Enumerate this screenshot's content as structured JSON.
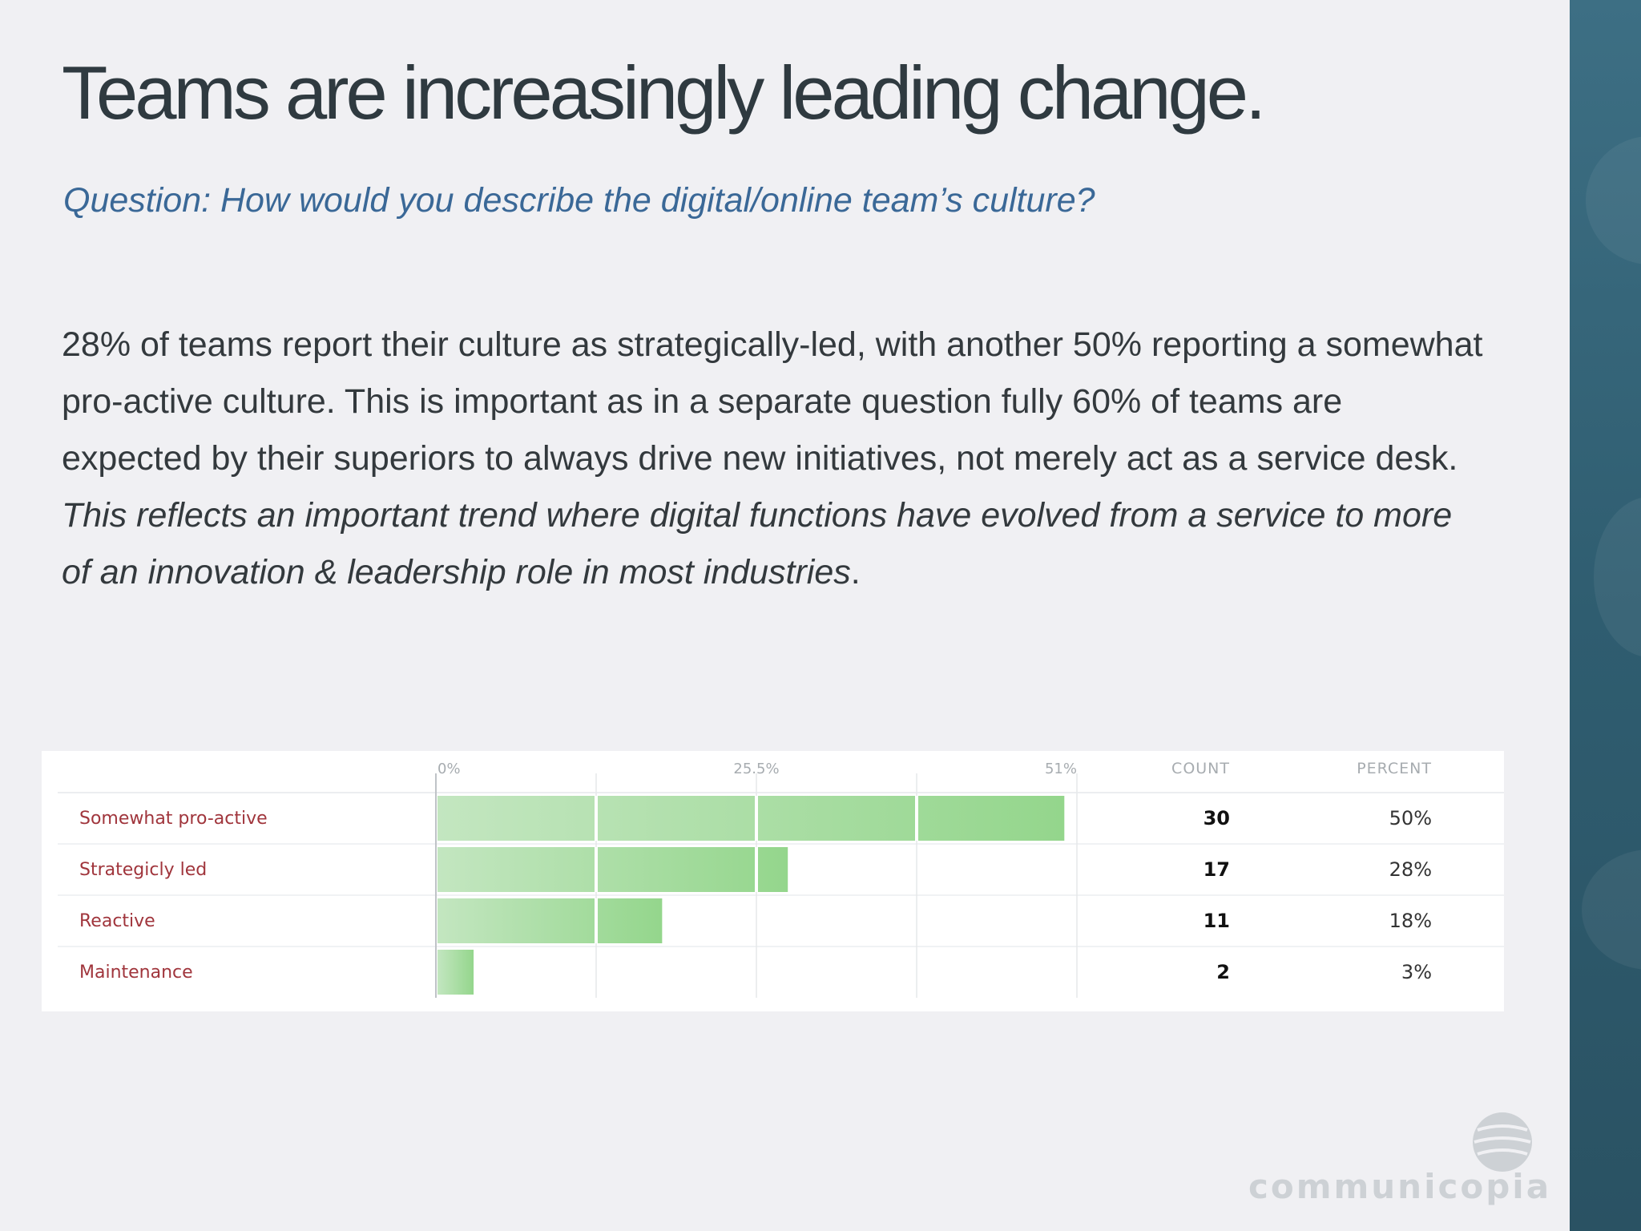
{
  "slide": {
    "title": "Teams are increasingly leading change.",
    "question": "Question: How would you describe the digital/online team’s culture?",
    "body_plain": "28% of teams report their culture as strategically-led, with another 50% reporting a somewhat pro-active culture. This is important as in a separate question fully 60% of teams are expected by their superiors to always drive new initiatives, not merely act as a service desk. ",
    "body_italic": "This reflects an important trend where digital functions have evolved from a service to more of an innovation & leadership role in most industries",
    "body_end": ".",
    "logo_text": "communicopia"
  },
  "colors": {
    "bar_light": "#c3e6c0",
    "bar_dark": "#94d68c",
    "category_label": "#a0353c",
    "side_panel": "#2f5d70",
    "question": "#3a6897"
  },
  "chart_data": {
    "type": "bar",
    "orientation": "horizontal",
    "categories": [
      "Somewhat pro-active",
      "Strategicly led",
      "Reactive",
      "Maintenance"
    ],
    "values": [
      50,
      28,
      18,
      3
    ],
    "counts": [
      30,
      17,
      11,
      2
    ],
    "percent_labels": [
      "50%",
      "28%",
      "18%",
      "3%"
    ],
    "xlim": [
      0,
      51
    ],
    "x_ticks": [
      0,
      25.5,
      51
    ],
    "x_tick_labels": [
      "0%",
      "25.5%",
      "51%"
    ],
    "columns": {
      "count": "COUNT",
      "percent": "PERCENT"
    },
    "grid": true
  }
}
